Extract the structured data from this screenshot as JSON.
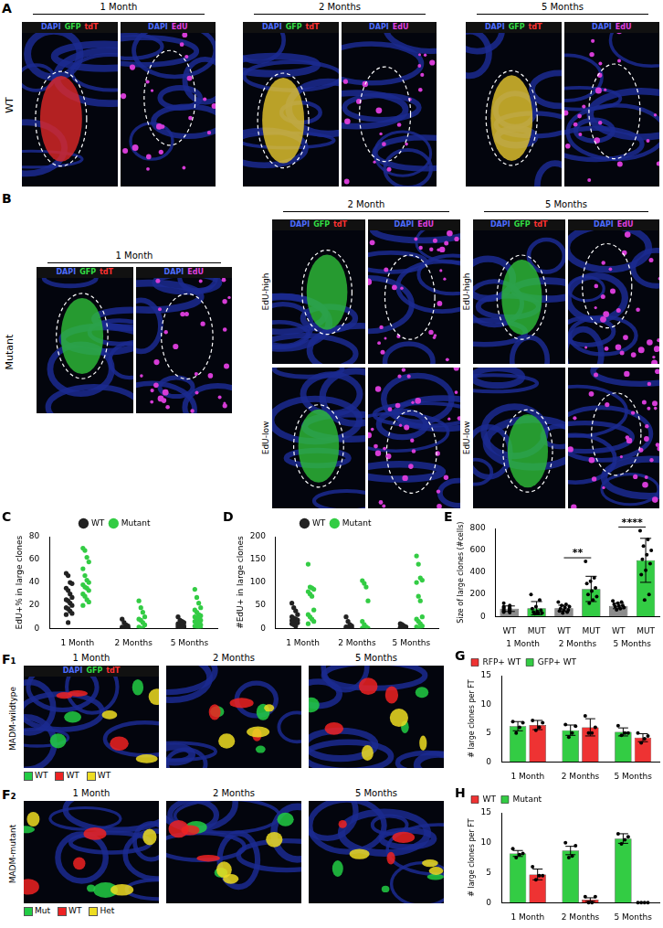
{
  "figure": {
    "A": {
      "label": "A",
      "row_label": "WT",
      "groups": [
        {
          "title": "1 Month",
          "rows": [
            {
              "channels": [
                [
                  {
                    "text": "DAPI",
                    "color": "#4d6dff"
                  },
                  {
                    "text": "GFP",
                    "color": "#33dd44"
                  },
                  {
                    "text": "tdT",
                    "color": "#ff3333"
                  }
                ],
                [
                  {
                    "text": "DAPI",
                    "color": "#4d6dff"
                  },
                  {
                    "text": "EdU",
                    "color": "#e040e0"
                  }
                ]
              ]
            }
          ]
        },
        {
          "title": "2 Months",
          "rows": [
            {
              "channels": [
                [
                  {
                    "text": "DAPI",
                    "color": "#4d6dff"
                  },
                  {
                    "text": "GFP",
                    "color": "#33dd44"
                  },
                  {
                    "text": "tdT",
                    "color": "#ff3333"
                  }
                ],
                [
                  {
                    "text": "DAPI",
                    "color": "#4d6dff"
                  },
                  {
                    "text": "EdU",
                    "color": "#e040e0"
                  }
                ]
              ]
            }
          ]
        },
        {
          "title": "5 Months",
          "rows": [
            {
              "channels": [
                [
                  {
                    "text": "DAPI",
                    "color": "#4d6dff"
                  },
                  {
                    "text": "GFP",
                    "color": "#33dd44"
                  },
                  {
                    "text": "tdT",
                    "color": "#ff3333"
                  }
                ],
                [
                  {
                    "text": "DAPI",
                    "color": "#4d6dff"
                  },
                  {
                    "text": "EdU",
                    "color": "#e040e0"
                  }
                ]
              ]
            }
          ]
        }
      ]
    },
    "B": {
      "label": "B",
      "row_label": "Mutant",
      "groups": [
        {
          "title": "1 Month",
          "rows": [
            {
              "channels": [
                [
                  {
                    "text": "DAPI",
                    "color": "#4d6dff"
                  },
                  {
                    "text": "GFP",
                    "color": "#33dd44"
                  },
                  {
                    "text": "tdT",
                    "color": "#ff3333"
                  }
                ],
                [
                  {
                    "text": "DAPI",
                    "color": "#4d6dff"
                  },
                  {
                    "text": "EdU",
                    "color": "#e040e0"
                  }
                ]
              ]
            }
          ]
        },
        {
          "title": "2 Month",
          "rows": [
            {
              "label": "EdU-high",
              "channels": [
                [
                  {
                    "text": "DAPI",
                    "color": "#4d6dff"
                  },
                  {
                    "text": "GFP",
                    "color": "#33dd44"
                  },
                  {
                    "text": "tdT",
                    "color": "#ff3333"
                  }
                ],
                [
                  {
                    "text": "DAPI",
                    "color": "#4d6dff"
                  },
                  {
                    "text": "EdU",
                    "color": "#e040e0"
                  }
                ]
              ]
            },
            {
              "label": "EdU-low"
            }
          ]
        },
        {
          "title": "5 Months",
          "rows": [
            {
              "label": "EdU-high",
              "channels": [
                [
                  {
                    "text": "DAPI",
                    "color": "#4d6dff"
                  },
                  {
                    "text": "GFP",
                    "color": "#33dd44"
                  },
                  {
                    "text": "tdT",
                    "color": "#ff3333"
                  }
                ],
                [
                  {
                    "text": "DAPI",
                    "color": "#4d6dff"
                  },
                  {
                    "text": "EdU",
                    "color": "#e040e0"
                  }
                ]
              ]
            },
            {
              "label": "EdU-low"
            }
          ]
        }
      ]
    },
    "F": [
      {
        "label": "F₁",
        "row_label": "MADM-wildtype",
        "titles": [
          "1 Month",
          "2 Months",
          "5 Months"
        ],
        "channels": [
          {
            "text": "DAPI",
            "color": "#4d6dff"
          },
          {
            "text": "GFP",
            "color": "#33dd44"
          },
          {
            "text": "tdT",
            "color": "#ff3333"
          }
        ],
        "key": [
          {
            "text": "WT",
            "color": "#22cc44"
          },
          {
            "text": "WT",
            "color": "#ee2222"
          },
          {
            "text": "WT",
            "color": "#eedd22"
          }
        ]
      },
      {
        "label": "F₂",
        "row_label": "MADM-mutant",
        "titles": [
          "1 Month",
          "2 Months",
          "5 Months"
        ],
        "key": [
          {
            "text": "Mut",
            "color": "#22cc44"
          },
          {
            "text": "WT",
            "color": "#ee2222"
          },
          {
            "text": "Het",
            "color": "#eedd22"
          }
        ]
      }
    ]
  },
  "chart_data": [
    {
      "panel": "C",
      "type": "scatter",
      "y_label": "EdU+% in large clones",
      "categories": [
        "1 Month",
        "2 Months",
        "5 Months"
      ],
      "ylim": [
        0,
        80
      ],
      "yticks": [
        0,
        20,
        40,
        60,
        80
      ],
      "grid": false,
      "legend": "top",
      "series": [
        {
          "name": "WT",
          "color": "#222222",
          "values": [
            [
              48,
              46,
              40,
              39,
              35,
              33,
              30,
              27,
              25,
              24,
              22,
              20,
              18,
              17,
              15,
              13,
              12,
              5
            ],
            [
              8,
              5,
              3,
              2,
              1,
              1,
              0,
              0,
              0,
              0,
              0,
              0
            ],
            [
              10,
              7,
              6,
              5,
              4,
              3,
              3,
              2,
              2,
              1,
              1,
              0,
              0,
              0,
              0,
              0
            ]
          ]
        },
        {
          "name": "Mutant",
          "color": "#33cc44",
          "values": [
            [
              70,
              68,
              62,
              58,
              52,
              46,
              42,
              40,
              38,
              36,
              35,
              33,
              30,
              28,
              25,
              23,
              20
            ],
            [
              24,
              18,
              14,
              10,
              8,
              7,
              5,
              3,
              1,
              0,
              0
            ],
            [
              34,
              27,
              22,
              18,
              16,
              14,
              12,
              11,
              10,
              9,
              8,
              7,
              6,
              5,
              4,
              3,
              2,
              1,
              0,
              0
            ]
          ]
        }
      ]
    },
    {
      "panel": "D",
      "type": "scatter",
      "y_label": "#EdU+ in large clones",
      "categories": [
        "1 Month",
        "2 Months",
        "5 Months"
      ],
      "ylim": [
        0,
        200
      ],
      "yticks": [
        0,
        50,
        100,
        150,
        200
      ],
      "grid": false,
      "legend": "top",
      "series": [
        {
          "name": "WT",
          "color": "#222222",
          "values": [
            [
              55,
              45,
              38,
              30,
              25,
              22,
              20,
              18,
              17,
              15,
              14,
              12,
              10,
              8,
              5
            ],
            [
              25,
              15,
              8,
              5,
              3,
              2,
              1,
              0,
              0,
              0
            ],
            [
              10,
              8,
              5,
              3,
              2,
              1,
              1,
              0,
              0,
              0
            ]
          ]
        },
        {
          "name": "Mutant",
          "color": "#33cc44",
          "values": [
            [
              140,
              90,
              88,
              85,
              80,
              75,
              70,
              40,
              30,
              25,
              20,
              15,
              10
            ],
            [
              104,
              98,
              90,
              60,
              15,
              8,
              3,
              0,
              0
            ],
            [
              158,
              140,
              110,
              105,
              100,
              70,
              60,
              25,
              20,
              15,
              10,
              5,
              3,
              0,
              0
            ]
          ]
        }
      ]
    },
    {
      "panel": "E",
      "type": "bar",
      "y_label": "Size of large clones (#cells)",
      "categories": [
        "WT",
        "MUT",
        "WT",
        "MUT",
        "WT",
        "MUT"
      ],
      "groups": [
        "1 Month",
        "2 Months",
        "5 Months"
      ],
      "ylim": [
        0,
        800
      ],
      "yticks": [
        0,
        200,
        400,
        600,
        800
      ],
      "grid": false,
      "colors": [
        "#8c8c8c",
        "#33cc44",
        "#8c8c8c",
        "#33cc44",
        "#8c8c8c",
        "#33cc44"
      ],
      "values": [
        70,
        75,
        74,
        250,
        95,
        510
      ],
      "errors": [
        25,
        60,
        28,
        115,
        25,
        200
      ],
      "points": [
        [
          120,
          100,
          90,
          85,
          80,
          75,
          70,
          65,
          60,
          55,
          50,
          45,
          40,
          35
        ],
        [
          200,
          150,
          90,
          70,
          55,
          45,
          40,
          30,
          30,
          25
        ],
        [
          130,
          110,
          100,
          90,
          80,
          70,
          60,
          55,
          50,
          40,
          30
        ],
        [
          500,
          350,
          320,
          300,
          260,
          230,
          200,
          180,
          150,
          120
        ],
        [
          140,
          130,
          120,
          110,
          100,
          95,
          90,
          80,
          70,
          60
        ],
        [
          780,
          700,
          640,
          600,
          560,
          520,
          480,
          420,
          380,
          200,
          150
        ]
      ],
      "annotations": [
        {
          "text": "**",
          "between": [
            2,
            3
          ]
        },
        {
          "text": "****",
          "between": [
            4,
            5
          ]
        }
      ]
    },
    {
      "panel": "G",
      "type": "bar",
      "y_label": "# large clones per FT",
      "categories": [
        "1 Month",
        "2 Months",
        "5 Months"
      ],
      "ylim": [
        0,
        15
      ],
      "yticks": [
        0,
        5,
        10,
        15
      ],
      "grid": false,
      "legend": "top-left",
      "series": [
        {
          "name": "RFP+ WT",
          "color": "#ee3333",
          "values": [
            6.4,
            6.0,
            4.2
          ],
          "errors": [
            0.8,
            1.5,
            0.7
          ],
          "points": [
            [
              7.2,
              6.8,
              6.0,
              5.5
            ],
            [
              8.0,
              6.0,
              5.0,
              5.0
            ],
            [
              5.0,
              4.5,
              4.0,
              3.3
            ]
          ]
        },
        {
          "name": "GFP+ WT",
          "color": "#33cc44",
          "values": [
            6.2,
            5.5,
            5.2
          ],
          "errors": [
            0.8,
            0.9,
            0.7
          ],
          "points": [
            [
              7.0,
              6.8,
              6.0,
              5.0
            ],
            [
              6.5,
              6.2,
              5.0,
              4.3
            ],
            [
              6.3,
              5.0,
              5.0,
              4.6
            ]
          ]
        }
      ]
    },
    {
      "panel": "H",
      "type": "bar",
      "y_label": "# large clones per FT",
      "categories": [
        "1 Month",
        "2 Months",
        "5 Months"
      ],
      "ylim": [
        0,
        15
      ],
      "yticks": [
        0,
        5,
        10,
        15
      ],
      "grid": false,
      "legend": "top-left",
      "series": [
        {
          "name": "WT",
          "color": "#ee3333",
          "values": [
            4.7,
            0.5,
            0
          ],
          "errors": [
            0.9,
            0.3,
            0
          ],
          "points": [
            [
              6.0,
              4.5,
              4.5,
              3.8
            ],
            [
              1,
              1,
              0,
              0
            ],
            [
              0,
              0,
              0,
              0
            ]
          ]
        },
        {
          "name": "Mutant",
          "color": "#33cc44",
          "values": [
            8.2,
            8.7,
            10.7
          ],
          "errors": [
            0.5,
            0.7,
            0.8
          ],
          "points": [
            [
              9.0,
              8.2,
              8.0,
              7.5
            ],
            [
              10,
              9.5,
              7.8,
              7.5
            ],
            [
              11.5,
              11,
              10.5,
              9.8
            ]
          ]
        }
      ]
    }
  ]
}
